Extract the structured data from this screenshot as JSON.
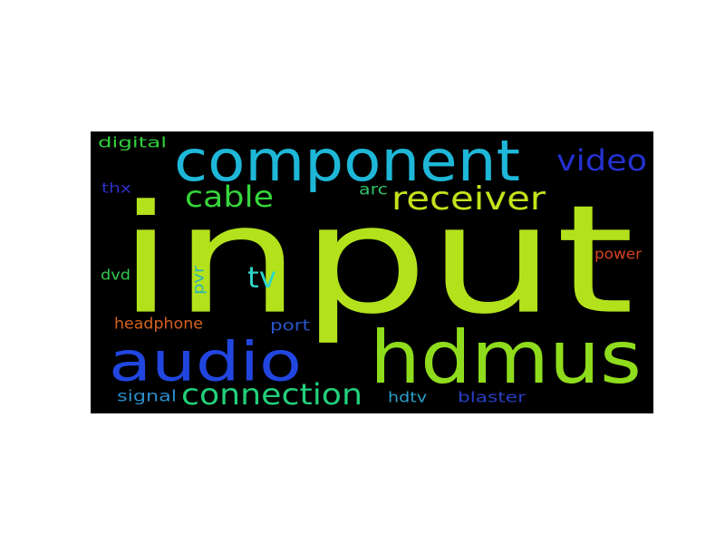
{
  "words": [
    {
      "id": "input",
      "text": "input",
      "color": "#b3e21c"
    },
    {
      "id": "component",
      "text": "component",
      "color": "#1eb7d8"
    },
    {
      "id": "hdmus",
      "text": "hdmus",
      "color": "#8fdc1c"
    },
    {
      "id": "audio",
      "text": "audio",
      "color": "#2146e0"
    },
    {
      "id": "receiver",
      "text": "receiver",
      "color": "#c5e21a"
    },
    {
      "id": "connection",
      "text": "connection",
      "color": "#22d07a"
    },
    {
      "id": "video",
      "text": "video",
      "color": "#2431d0"
    },
    {
      "id": "cable",
      "text": "cable",
      "color": "#36d63b"
    },
    {
      "id": "tv",
      "text": "tv",
      "color": "#2dd6c8"
    },
    {
      "id": "headphone",
      "text": "headphone",
      "color": "#d6621e"
    },
    {
      "id": "power",
      "text": "power",
      "color": "#d4441e"
    },
    {
      "id": "digital",
      "text": "digital",
      "color": "#2fcf3a"
    },
    {
      "id": "dvd",
      "text": "dvd",
      "color": "#34c94e"
    },
    {
      "id": "thx",
      "text": "thx",
      "color": "#2d2fc4"
    },
    {
      "id": "arc",
      "text": "arc",
      "color": "#2ec06a"
    },
    {
      "id": "pvr",
      "text": "pvr",
      "color": "#2db3b0"
    },
    {
      "id": "port",
      "text": "port",
      "color": "#2856c8"
    },
    {
      "id": "signal",
      "text": "signal",
      "color": "#2c8ec9"
    },
    {
      "id": "hdtv",
      "text": "hdtv",
      "color": "#2c9fc9"
    },
    {
      "id": "blaster",
      "text": "blaster",
      "color": "#2a3ec2"
    }
  ]
}
